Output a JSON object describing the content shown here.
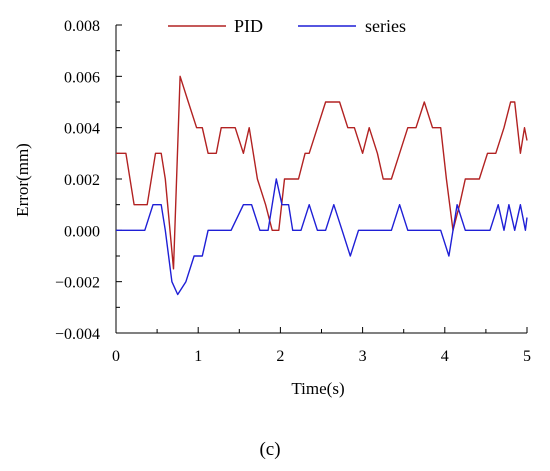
{
  "chart_data": {
    "type": "line",
    "xlabel": "Time(s)",
    "ylabel": "Error(mm)",
    "xlim": [
      0,
      5
    ],
    "ylim": [
      -0.004,
      0.008
    ],
    "xticks": [
      0,
      1,
      2,
      3,
      4,
      5
    ],
    "xtick_labels": [
      "0",
      "1",
      "2",
      "3",
      "4",
      "5"
    ],
    "yticks": [
      -0.004,
      -0.002,
      0.0,
      0.002,
      0.004,
      0.006,
      0.008
    ],
    "ytick_labels": [
      "−0.004",
      "−0.002",
      "0.000",
      "0.002",
      "0.004",
      "0.006",
      "0.008"
    ],
    "grid": false,
    "legend_position": "top",
    "series": [
      {
        "name": "PID",
        "color": "#b22222",
        "x": [
          0.0,
          0.12,
          0.22,
          0.38,
          0.48,
          0.55,
          0.6,
          0.7,
          0.78,
          0.88,
          0.98,
          1.05,
          1.12,
          1.22,
          1.28,
          1.45,
          1.55,
          1.62,
          1.72,
          1.82,
          1.9,
          1.98,
          2.05,
          2.12,
          2.22,
          2.3,
          2.35,
          2.45,
          2.55,
          2.62,
          2.72,
          2.82,
          2.9,
          3.0,
          3.08,
          3.18,
          3.25,
          3.35,
          3.45,
          3.55,
          3.65,
          3.75,
          3.85,
          3.95,
          4.02,
          4.1,
          4.18,
          4.25,
          4.35,
          4.42,
          4.52,
          4.62,
          4.72,
          4.8,
          4.85,
          4.92,
          4.97,
          5.0
        ],
        "y": [
          0.003,
          0.003,
          0.001,
          0.001,
          0.003,
          0.003,
          0.002,
          -0.0015,
          0.006,
          0.005,
          0.004,
          0.004,
          0.003,
          0.003,
          0.004,
          0.004,
          0.003,
          0.004,
          0.002,
          0.001,
          0.0,
          0.0,
          0.002,
          0.002,
          0.002,
          0.003,
          0.003,
          0.004,
          0.005,
          0.005,
          0.005,
          0.004,
          0.004,
          0.003,
          0.004,
          0.003,
          0.002,
          0.002,
          0.003,
          0.004,
          0.004,
          0.005,
          0.004,
          0.004,
          0.002,
          0.0,
          0.001,
          0.002,
          0.002,
          0.002,
          0.003,
          0.003,
          0.004,
          0.005,
          0.005,
          0.003,
          0.004,
          0.0035
        ]
      },
      {
        "name": "series",
        "color": "#1f1fd6",
        "x": [
          0.0,
          0.35,
          0.45,
          0.55,
          0.6,
          0.68,
          0.75,
          0.85,
          0.95,
          1.05,
          1.12,
          1.2,
          1.4,
          1.55,
          1.65,
          1.75,
          1.85,
          1.95,
          2.02,
          2.1,
          2.15,
          2.25,
          2.35,
          2.45,
          2.55,
          2.65,
          2.75,
          2.85,
          2.95,
          3.15,
          3.35,
          3.45,
          3.55,
          3.7,
          3.95,
          4.05,
          4.15,
          4.25,
          4.35,
          4.55,
          4.65,
          4.72,
          4.78,
          4.85,
          4.92,
          4.98,
          5.0
        ],
        "y": [
          0.0,
          0.0,
          0.001,
          0.001,
          0.0,
          -0.002,
          -0.0025,
          -0.002,
          -0.001,
          -0.001,
          0.0,
          0.0,
          0.0,
          0.001,
          0.001,
          0.0,
          0.0,
          0.002,
          0.001,
          0.001,
          0.0,
          0.0,
          0.001,
          0.0,
          0.0,
          0.001,
          0.0,
          -0.001,
          0.0,
          0.0,
          0.0,
          0.001,
          0.0,
          0.0,
          0.0,
          -0.001,
          0.001,
          0.0,
          0.0,
          0.0,
          0.001,
          0.0,
          0.001,
          0.0,
          0.001,
          0.0,
          0.0005
        ]
      }
    ]
  },
  "caption": "(c)"
}
